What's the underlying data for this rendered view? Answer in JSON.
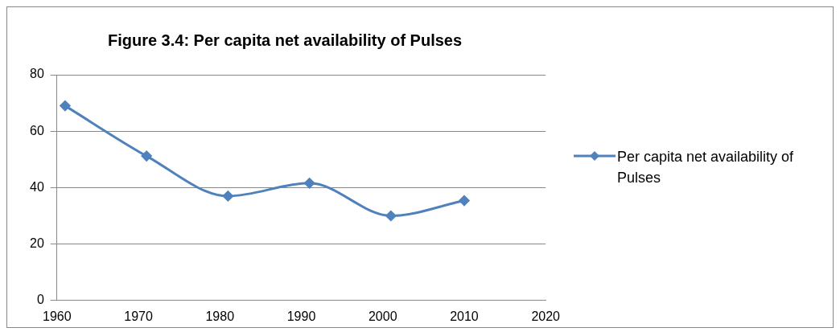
{
  "chart_data": {
    "type": "line",
    "title": "Figure 3.4: Per capita net availability of Pulses",
    "x": [
      1961,
      1971,
      1981,
      1991,
      2001,
      2010
    ],
    "series": [
      {
        "name": "Per capita net availability of Pulses",
        "color": "#4f81bd",
        "values": [
          69.0,
          51.2,
          37.0,
          41.6,
          30.0,
          35.4
        ]
      }
    ],
    "xlim": [
      1960,
      2020
    ],
    "xticks": [
      1960,
      1970,
      1980,
      1990,
      2000,
      2010,
      2020
    ],
    "ylim": [
      0,
      80
    ],
    "yticks": [
      0,
      20,
      40,
      60,
      80
    ],
    "grid": "y",
    "legend": "right",
    "marker": "diamond",
    "line_style": "solid"
  }
}
